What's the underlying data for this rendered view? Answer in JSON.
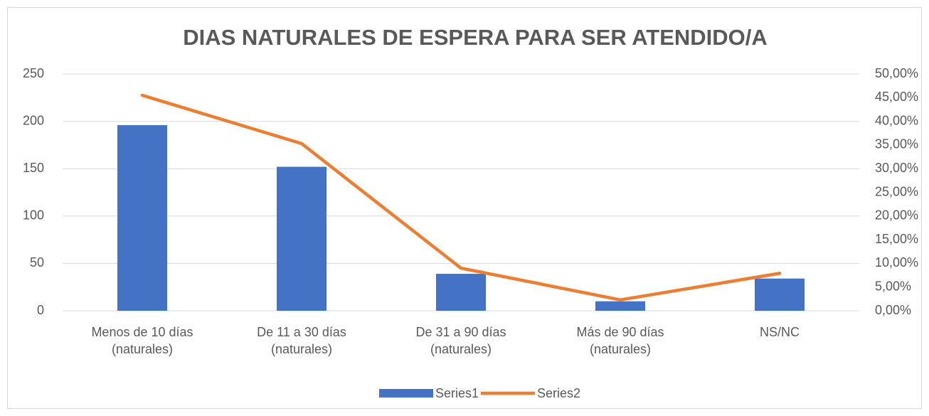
{
  "chart_data": {
    "type": "bar",
    "title": "DIAS NATURALES DE ESPERA PARA SER ATENDIDO/A",
    "categories": [
      "Menos de 10 días (naturales)",
      "De 11 a 30 días (naturales)",
      "De 31 a 90 días (naturales)",
      "Más de 90 días (naturales)",
      "NS/NC"
    ],
    "series": [
      {
        "name": "Series1",
        "type": "bar",
        "color": "#4472c4",
        "values": [
          196,
          152,
          39,
          10,
          34
        ]
      },
      {
        "name": "Series2",
        "type": "line",
        "axis": "y2",
        "color": "#ed7d31",
        "values": [
          45.5,
          35.3,
          9.0,
          2.3,
          7.9
        ]
      }
    ],
    "ylim": [
      0,
      250
    ],
    "yticks": [
      0,
      50,
      100,
      150,
      200,
      250
    ],
    "y2lim": [
      0,
      50
    ],
    "y2ticks": [
      {
        "value": 0,
        "label": "0,00%"
      },
      {
        "value": 5,
        "label": "5,00%"
      },
      {
        "value": 10,
        "label": "10,00%"
      },
      {
        "value": 15,
        "label": "15,00%"
      },
      {
        "value": 20,
        "label": "20,00%"
      },
      {
        "value": 25,
        "label": "25,00%"
      },
      {
        "value": 30,
        "label": "30,00%"
      },
      {
        "value": 35,
        "label": "35,00%"
      },
      {
        "value": 40,
        "label": "40,00%"
      },
      {
        "value": 45,
        "label": "45,00%"
      },
      {
        "value": 50,
        "label": "50,00%"
      }
    ],
    "grid": true,
    "legend": "bottom"
  }
}
